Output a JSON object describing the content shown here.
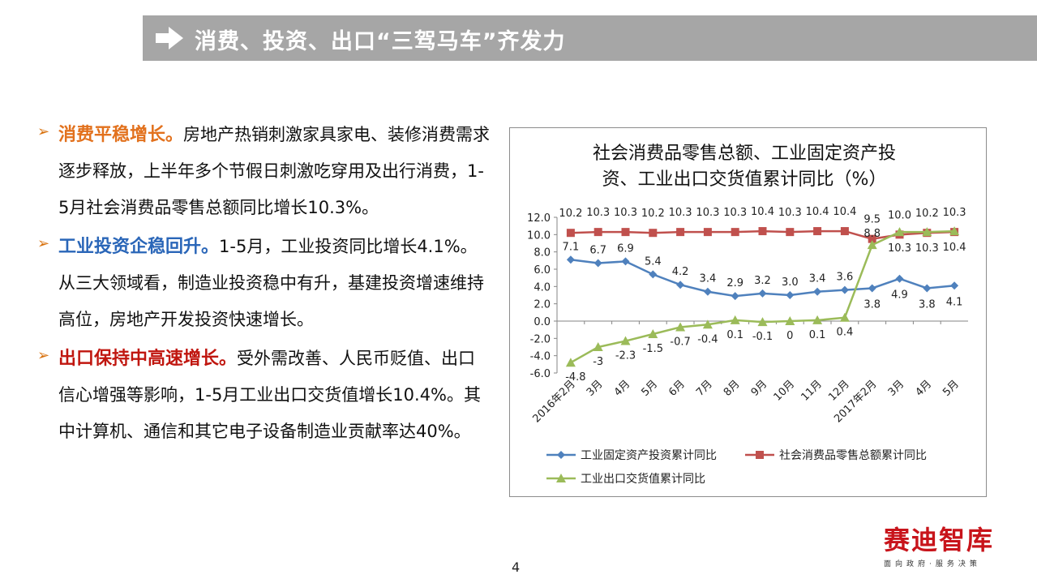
{
  "header": {
    "title": "消费、投资、出口“三驾马车”齐发力"
  },
  "bullets": [
    {
      "heading": "消费平稳增长。",
      "body": "房地产热销刺激家具家电、装修消费需求逐步释放，上半年多个节假日刺激吃穿用及出行消费，1-5月社会消费品零售总额同比增长10.3%。",
      "color": "#e2711d"
    },
    {
      "heading": "工业投资企稳回升。",
      "body": "1-5月，工业投资同比增长4.1%。从三大领域看，制造业投资稳中有升，基建投资增速维持高位，房地产开发投资快速增长。",
      "color": "#2a66b8"
    },
    {
      "heading": "出口保持中高速增长。",
      "body": "受外需改善、人民币贬值、出口信心增强等影响，1-5月工业出口交货值增长10.4%。其中计算机、通信和其它电子设备制造业贡献率达40%。",
      "color": "#c0160f"
    }
  ],
  "chart_data": {
    "type": "line",
    "title": "社会消费品零售总额、工业固定资产投资、工业出口交货值累计同比（%）",
    "title_lines": [
      "社会消费品零售总额、工业固定资产投",
      "资、工业出口交货值累计同比（%）"
    ],
    "categories": [
      "2016年2月",
      "3月",
      "4月",
      "5月",
      "6月",
      "7月",
      "8月",
      "9月",
      "10月",
      "11月",
      "12月",
      "2017年2月",
      "3月",
      "4月",
      "5月"
    ],
    "ylim": [
      -6.0,
      12.0
    ],
    "yticks": [
      "12.0",
      "10.0",
      "8.0",
      "6.0",
      "4.0",
      "2.0",
      "0.0",
      "-2.0",
      "-4.0",
      "-6.0"
    ],
    "grid": false,
    "legend_position": "bottom",
    "series": [
      {
        "name": "工业固定资产投资累计同比",
        "color": "#4f81bd",
        "marker": "diamond",
        "values": [
          7.1,
          6.7,
          6.9,
          5.4,
          4.2,
          3.4,
          2.9,
          3.2,
          3.0,
          3.4,
          3.6,
          3.8,
          4.9,
          3.8,
          4.1
        ],
        "labels": [
          "7.1",
          "6.7",
          "6.9",
          "5.4",
          "4.2",
          "3.4",
          "2.9",
          "3.2",
          "3.0",
          "3.4",
          "3.6",
          "3.8",
          "4.9",
          "3.8",
          "4.1"
        ]
      },
      {
        "name": "社会消费品零售总额累计同比",
        "color": "#c0504d",
        "marker": "square",
        "values": [
          10.2,
          10.3,
          10.3,
          10.2,
          10.3,
          10.3,
          10.3,
          10.4,
          10.3,
          10.4,
          10.4,
          9.5,
          10.0,
          10.2,
          10.3
        ],
        "labels": [
          "10.2",
          "10.3",
          "10.3",
          "10.2",
          "10.3",
          "10.3",
          "10.3",
          "10.4",
          "10.3",
          "10.4",
          "10.4",
          "9.5",
          "10.0",
          "10.2",
          "10.3"
        ]
      },
      {
        "name": "工业出口交货值累计同比",
        "color": "#9bbb59",
        "marker": "triangle",
        "values": [
          -4.8,
          -3.0,
          -2.3,
          -1.5,
          -0.7,
          -0.4,
          0.1,
          -0.1,
          0.0,
          0.1,
          0.4,
          8.8,
          10.3,
          10.3,
          10.4
        ],
        "labels": [
          "-4.8",
          "-3",
          "-2.3",
          "-1.5",
          "-0.7",
          "-0.4",
          "0.1",
          "-0.1",
          "0",
          "0.1",
          "0.4",
          "8.8",
          "10.3",
          "10.3",
          "10.4"
        ]
      }
    ]
  },
  "footer": {
    "page_number": "4",
    "logo_text": "赛迪智库",
    "logo_tagline": "面向政府·服务决策"
  }
}
